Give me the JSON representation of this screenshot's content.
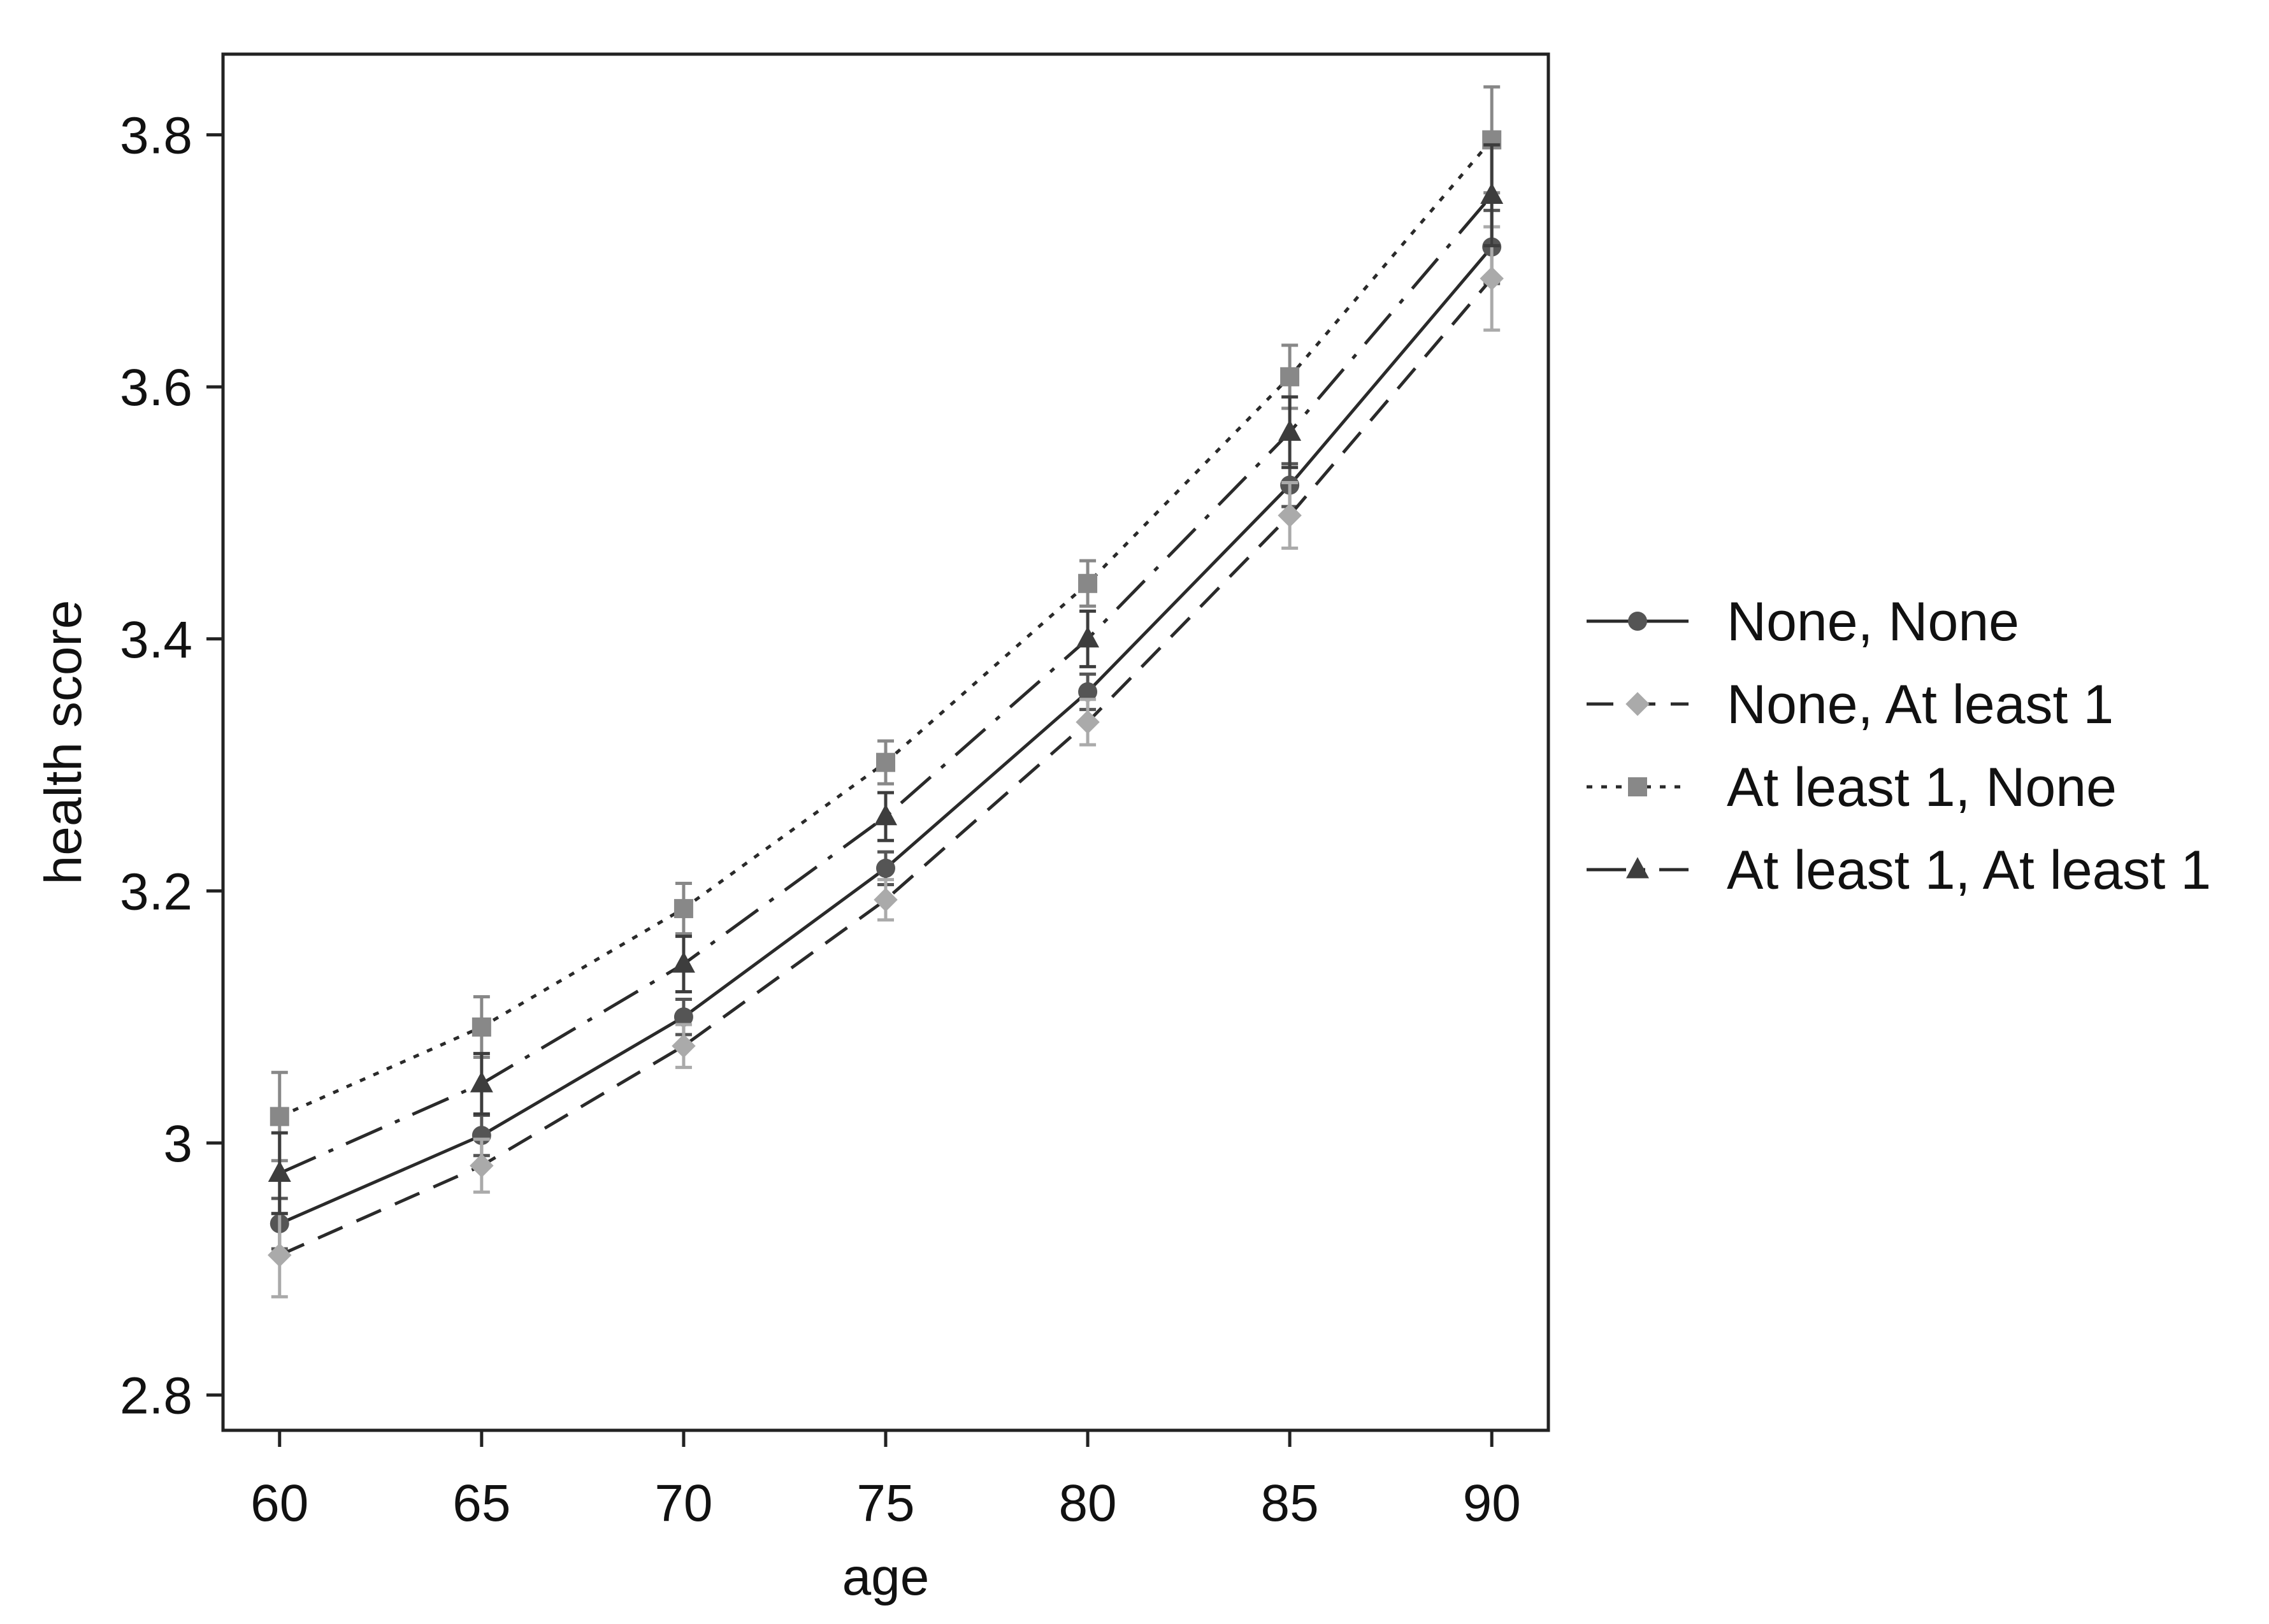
{
  "chart_data": {
    "type": "line",
    "title": "",
    "xlabel": "age",
    "ylabel": "health score",
    "xlim": [
      58.6,
      91.4
    ],
    "ylim": [
      2.772,
      3.864
    ],
    "x": [
      60,
      65,
      70,
      75,
      80,
      85,
      90
    ],
    "xticks": [
      "60",
      "65",
      "70",
      "75",
      "80",
      "85",
      "90"
    ],
    "yticks": [
      {
        "value": 2.8,
        "label": "2.8"
      },
      {
        "value": 3.0,
        "label": "3"
      },
      {
        "value": 3.2,
        "label": "3.2"
      },
      {
        "value": 3.4,
        "label": "3.4"
      },
      {
        "value": 3.6,
        "label": "3.6"
      },
      {
        "value": 3.8,
        "label": "3.8"
      }
    ],
    "grid": false,
    "legend_position": "right",
    "series": [
      {
        "name": "None, None",
        "marker": "circle",
        "line_style": "solid",
        "line_color": "#2a2a2a",
        "marker_color": "#555555",
        "values": [
          2.936,
          3.006,
          3.1,
          3.218,
          3.358,
          3.522,
          3.711
        ],
        "ci_low": [
          2.916,
          2.99,
          3.086,
          3.205,
          3.344,
          3.505,
          3.682
        ],
        "ci_high": [
          2.956,
          3.022,
          3.114,
          3.231,
          3.372,
          3.539,
          3.74
        ]
      },
      {
        "name": "None, At least 1",
        "marker": "diamond",
        "line_style": "dashed",
        "line_color": "#2a2a2a",
        "marker_color": "#aaaaaa",
        "values": [
          2.911,
          2.982,
          3.077,
          3.193,
          3.334,
          3.498,
          3.686
        ],
        "ci_low": [
          2.878,
          2.961,
          3.06,
          3.177,
          3.316,
          3.472,
          3.645
        ],
        "ci_high": [
          2.944,
          3.003,
          3.094,
          3.209,
          3.352,
          3.524,
          3.727
        ]
      },
      {
        "name": "At least 1, None",
        "marker": "square",
        "line_style": "dotted",
        "line_color": "#2a2a2a",
        "marker_color": "#888888",
        "values": [
          3.021,
          3.092,
          3.186,
          3.302,
          3.444,
          3.608,
          3.796
        ],
        "ci_low": [
          2.986,
          3.068,
          3.166,
          3.285,
          3.426,
          3.583,
          3.754
        ],
        "ci_high": [
          3.056,
          3.116,
          3.206,
          3.319,
          3.462,
          3.633,
          3.838
        ]
      },
      {
        "name": "At least 1, At least 1",
        "marker": "triangle",
        "line_style": "dash-dot",
        "line_color": "#2a2a2a",
        "marker_color": "#3d3d3d",
        "values": [
          2.976,
          3.047,
          3.142,
          3.259,
          3.4,
          3.564,
          3.752
        ],
        "ci_low": [
          2.944,
          3.023,
          3.12,
          3.24,
          3.378,
          3.536,
          3.712
        ],
        "ci_high": [
          3.008,
          3.071,
          3.164,
          3.278,
          3.422,
          3.592,
          3.792
        ]
      }
    ]
  }
}
